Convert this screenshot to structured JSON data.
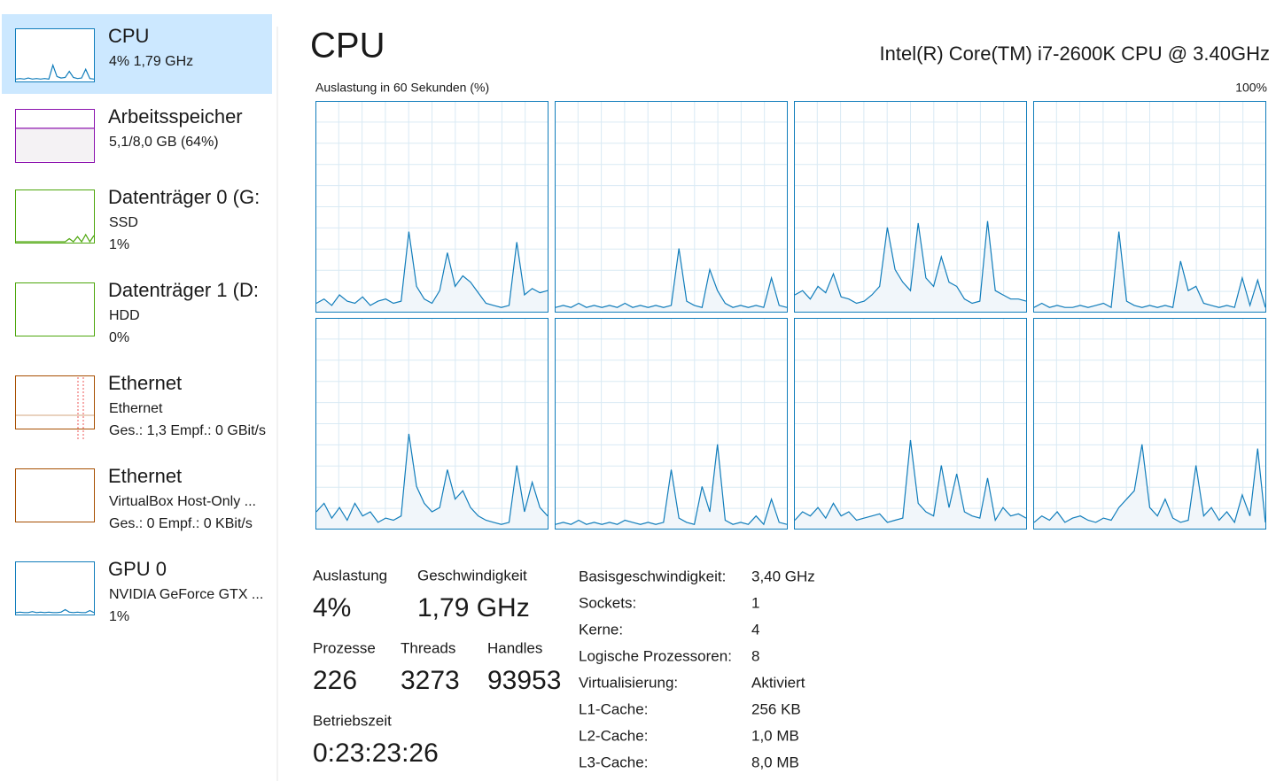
{
  "header": {
    "title": "CPU",
    "processor": "Intel(R) Core(TM) i7-2600K CPU @ 3.40GHz",
    "graph_caption": "Auslastung in 60 Sekunden (%)",
    "graph_max": "100%",
    "graph_ylim": [
      0,
      100
    ]
  },
  "sidebar": {
    "items": [
      {
        "title": "CPU",
        "lines": [
          "4%  1,79 GHz"
        ],
        "color": "#117dbb",
        "graph": [
          3,
          4,
          3,
          5,
          3,
          4,
          3,
          4,
          3,
          30,
          8,
          5,
          6,
          18,
          6,
          4,
          5,
          22,
          4,
          3
        ]
      },
      {
        "title": "Arbeitsspeicher",
        "lines": [
          "5,1/8,0 GB (64%)"
        ],
        "color": "#8b12ae",
        "graph": [
          64,
          64,
          64,
          64,
          64,
          64,
          64,
          64,
          64,
          64,
          64,
          64,
          64,
          64,
          64,
          64,
          64,
          64,
          64,
          64
        ]
      },
      {
        "title": "Datenträger 0 (G:",
        "lines": [
          "SSD",
          "1%"
        ],
        "color": "#4da60c",
        "graph": [
          0,
          0,
          0,
          0,
          0,
          0,
          0,
          0,
          0,
          0,
          0,
          0,
          0,
          6,
          0,
          10,
          0,
          14,
          0,
          12
        ]
      },
      {
        "title": "Datenträger 1 (D:",
        "lines": [
          "HDD",
          "0%"
        ],
        "color": "#4da60c"
      },
      {
        "title": "Ethernet",
        "lines": [
          "Ethernet",
          "Ges.: 1,3  Empf.: 0 GBit/s"
        ],
        "color": "#a74f01"
      },
      {
        "title": "Ethernet",
        "lines": [
          "VirtualBox Host-Only ...",
          "Ges.: 0  Empf.: 0 KBit/s"
        ],
        "color": "#a74f01"
      },
      {
        "title": "GPU 0",
        "lines": [
          "NVIDIA GeForce GTX ...",
          "1%"
        ],
        "color": "#117dbb",
        "graph": [
          2,
          3,
          2,
          2,
          4,
          2,
          3,
          2,
          3,
          2,
          2,
          3,
          8,
          3,
          2,
          3,
          2,
          2,
          6,
          2
        ]
      }
    ]
  },
  "cores": [
    {
      "values": [
        4,
        6,
        3,
        8,
        5,
        4,
        7,
        3,
        5,
        6,
        4,
        5,
        38,
        12,
        6,
        4,
        10,
        28,
        12,
        17,
        14,
        9,
        4,
        3,
        2,
        3,
        33,
        8,
        11,
        9,
        10
      ]
    },
    {
      "values": [
        2,
        3,
        2,
        4,
        2,
        3,
        2,
        3,
        2,
        4,
        2,
        3,
        2,
        3,
        2,
        3,
        30,
        5,
        3,
        2,
        20,
        10,
        4,
        2,
        3,
        2,
        3,
        2,
        16,
        3,
        2
      ]
    },
    {
      "values": [
        8,
        10,
        6,
        12,
        9,
        18,
        7,
        6,
        4,
        5,
        8,
        12,
        40,
        20,
        14,
        10,
        42,
        16,
        12,
        26,
        14,
        12,
        6,
        4,
        5,
        43,
        10,
        8,
        6,
        6,
        5
      ]
    },
    {
      "values": [
        2,
        4,
        2,
        3,
        2,
        2,
        3,
        2,
        3,
        4,
        2,
        38,
        5,
        3,
        2,
        3,
        2,
        3,
        2,
        24,
        10,
        12,
        4,
        3,
        2,
        3,
        2,
        16,
        3,
        15,
        2
      ]
    },
    {
      "values": [
        8,
        12,
        5,
        10,
        4,
        12,
        6,
        8,
        3,
        5,
        4,
        6,
        45,
        20,
        12,
        8,
        10,
        28,
        14,
        18,
        10,
        6,
        4,
        3,
        2,
        3,
        30,
        8,
        22,
        10,
        6
      ]
    },
    {
      "values": [
        2,
        3,
        2,
        4,
        2,
        3,
        2,
        3,
        2,
        4,
        3,
        2,
        3,
        2,
        3,
        28,
        5,
        3,
        2,
        20,
        8,
        40,
        4,
        2,
        3,
        2,
        6,
        2,
        14,
        3,
        2
      ]
    },
    {
      "values": [
        4,
        8,
        6,
        10,
        5,
        12,
        6,
        8,
        4,
        5,
        6,
        7,
        3,
        4,
        5,
        42,
        12,
        8,
        6,
        30,
        10,
        26,
        8,
        6,
        5,
        24,
        4,
        10,
        6,
        7,
        5
      ]
    },
    {
      "values": [
        3,
        6,
        4,
        8,
        3,
        5,
        6,
        4,
        3,
        5,
        4,
        10,
        14,
        18,
        40,
        10,
        6,
        14,
        5,
        3,
        4,
        30,
        6,
        10,
        4,
        8,
        3,
        16,
        6,
        38,
        3
      ]
    }
  ],
  "stats": [
    {
      "label": "Auslastung",
      "value": "4%"
    },
    {
      "label": "Geschwindigkeit",
      "value": "1,79 GHz"
    },
    {
      "label": "Prozesse",
      "value": "226"
    },
    {
      "label": "Threads",
      "value": "3273"
    },
    {
      "label": "Handles",
      "value": "93953"
    },
    {
      "label": "Betriebszeit",
      "value": "0:23:23:26"
    }
  ],
  "details": [
    [
      "Basisgeschwindigkeit:",
      "3,40 GHz"
    ],
    [
      "Sockets:",
      "1"
    ],
    [
      "Kerne:",
      "4"
    ],
    [
      "Logische Prozessoren:",
      "8"
    ],
    [
      "Virtualisierung:",
      "Aktiviert"
    ],
    [
      "L1-Cache:",
      "256 KB"
    ],
    [
      "L2-Cache:",
      "1,0 MB"
    ],
    [
      "L3-Cache:",
      "8,0 MB"
    ]
  ]
}
